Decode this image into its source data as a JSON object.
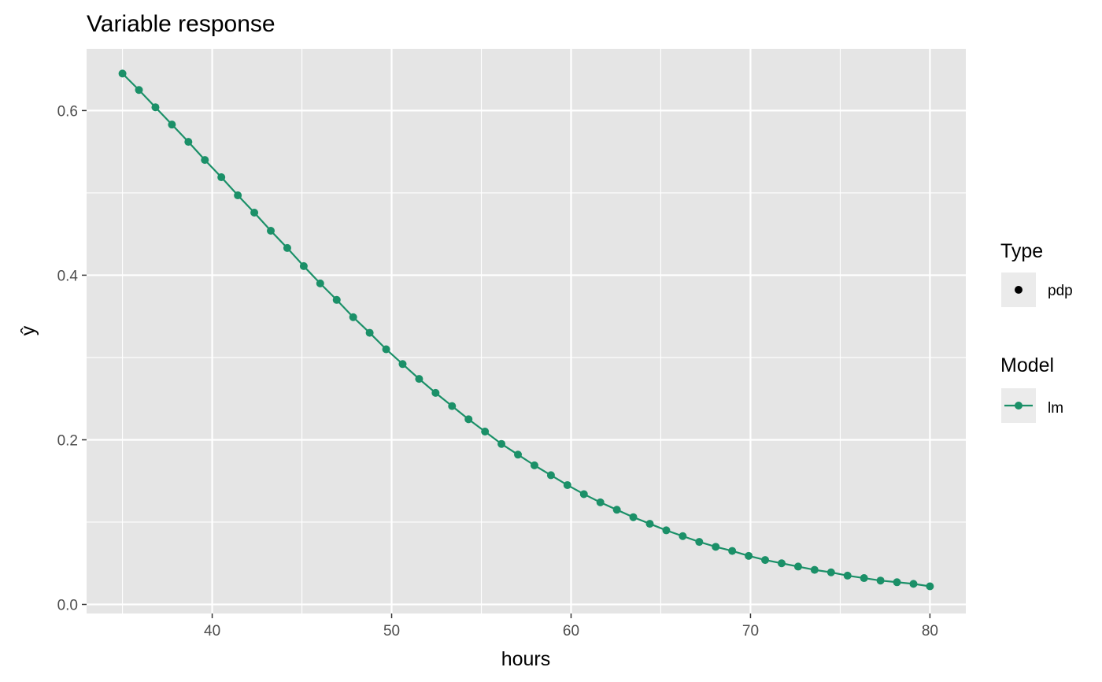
{
  "chart_data": {
    "type": "line",
    "title": "Variable response",
    "xlabel": "hours",
    "ylabel": "ŷ",
    "xlim": [
      33,
      82
    ],
    "ylim": [
      -0.011,
      0.675
    ],
    "x_ticks": [
      40,
      50,
      60,
      70,
      80
    ],
    "x_minor_ticks": [
      35,
      45,
      55,
      65,
      75
    ],
    "y_ticks": [
      0.0,
      0.2,
      0.4,
      0.6
    ],
    "y_minor_ticks": [
      0.1,
      0.3,
      0.5
    ],
    "y_tick_labels": [
      "0.0",
      "0.2",
      "0.4",
      "0.6"
    ],
    "x_tick_labels": [
      "40",
      "50",
      "60",
      "70",
      "80"
    ],
    "grid": true,
    "legend_placement": "right",
    "colors": {
      "panel_background": "#e5e5e5",
      "grid": "#ffffff",
      "series": "#1b9068"
    },
    "legend": [
      {
        "title": "Type",
        "entries": [
          {
            "label": "pdp",
            "symbol": "point",
            "color": "#000000"
          }
        ]
      },
      {
        "title": "Model",
        "entries": [
          {
            "label": "lm",
            "symbol": "line-point",
            "color": "#1b9068"
          }
        ]
      }
    ],
    "series": [
      {
        "model": "lm",
        "type": "pdp",
        "x": [
          35.0,
          35.918,
          36.837,
          37.755,
          38.673,
          39.592,
          40.51,
          41.429,
          42.347,
          43.265,
          44.184,
          45.102,
          46.02,
          46.939,
          47.857,
          48.776,
          49.694,
          50.612,
          51.531,
          52.449,
          53.367,
          54.286,
          55.204,
          56.122,
          57.041,
          57.959,
          58.878,
          59.796,
          60.714,
          61.633,
          62.551,
          63.469,
          64.388,
          65.306,
          66.224,
          67.143,
          68.061,
          68.98,
          69.898,
          70.816,
          71.735,
          72.653,
          73.571,
          74.49,
          75.408,
          76.327,
          77.245,
          78.163,
          79.082,
          80.0
        ],
        "y": [
          0.645,
          0.625,
          0.604,
          0.583,
          0.562,
          0.54,
          0.519,
          0.497,
          0.476,
          0.454,
          0.433,
          0.411,
          0.39,
          0.37,
          0.349,
          0.33,
          0.31,
          0.292,
          0.274,
          0.257,
          0.241,
          0.225,
          0.21,
          0.195,
          0.182,
          0.169,
          0.157,
          0.145,
          0.134,
          0.124,
          0.115,
          0.106,
          0.098,
          0.09,
          0.083,
          0.076,
          0.07,
          0.065,
          0.059,
          0.054,
          0.05,
          0.046,
          0.042,
          0.039,
          0.035,
          0.032,
          0.029,
          0.027,
          0.025,
          0.022
        ]
      }
    ]
  }
}
